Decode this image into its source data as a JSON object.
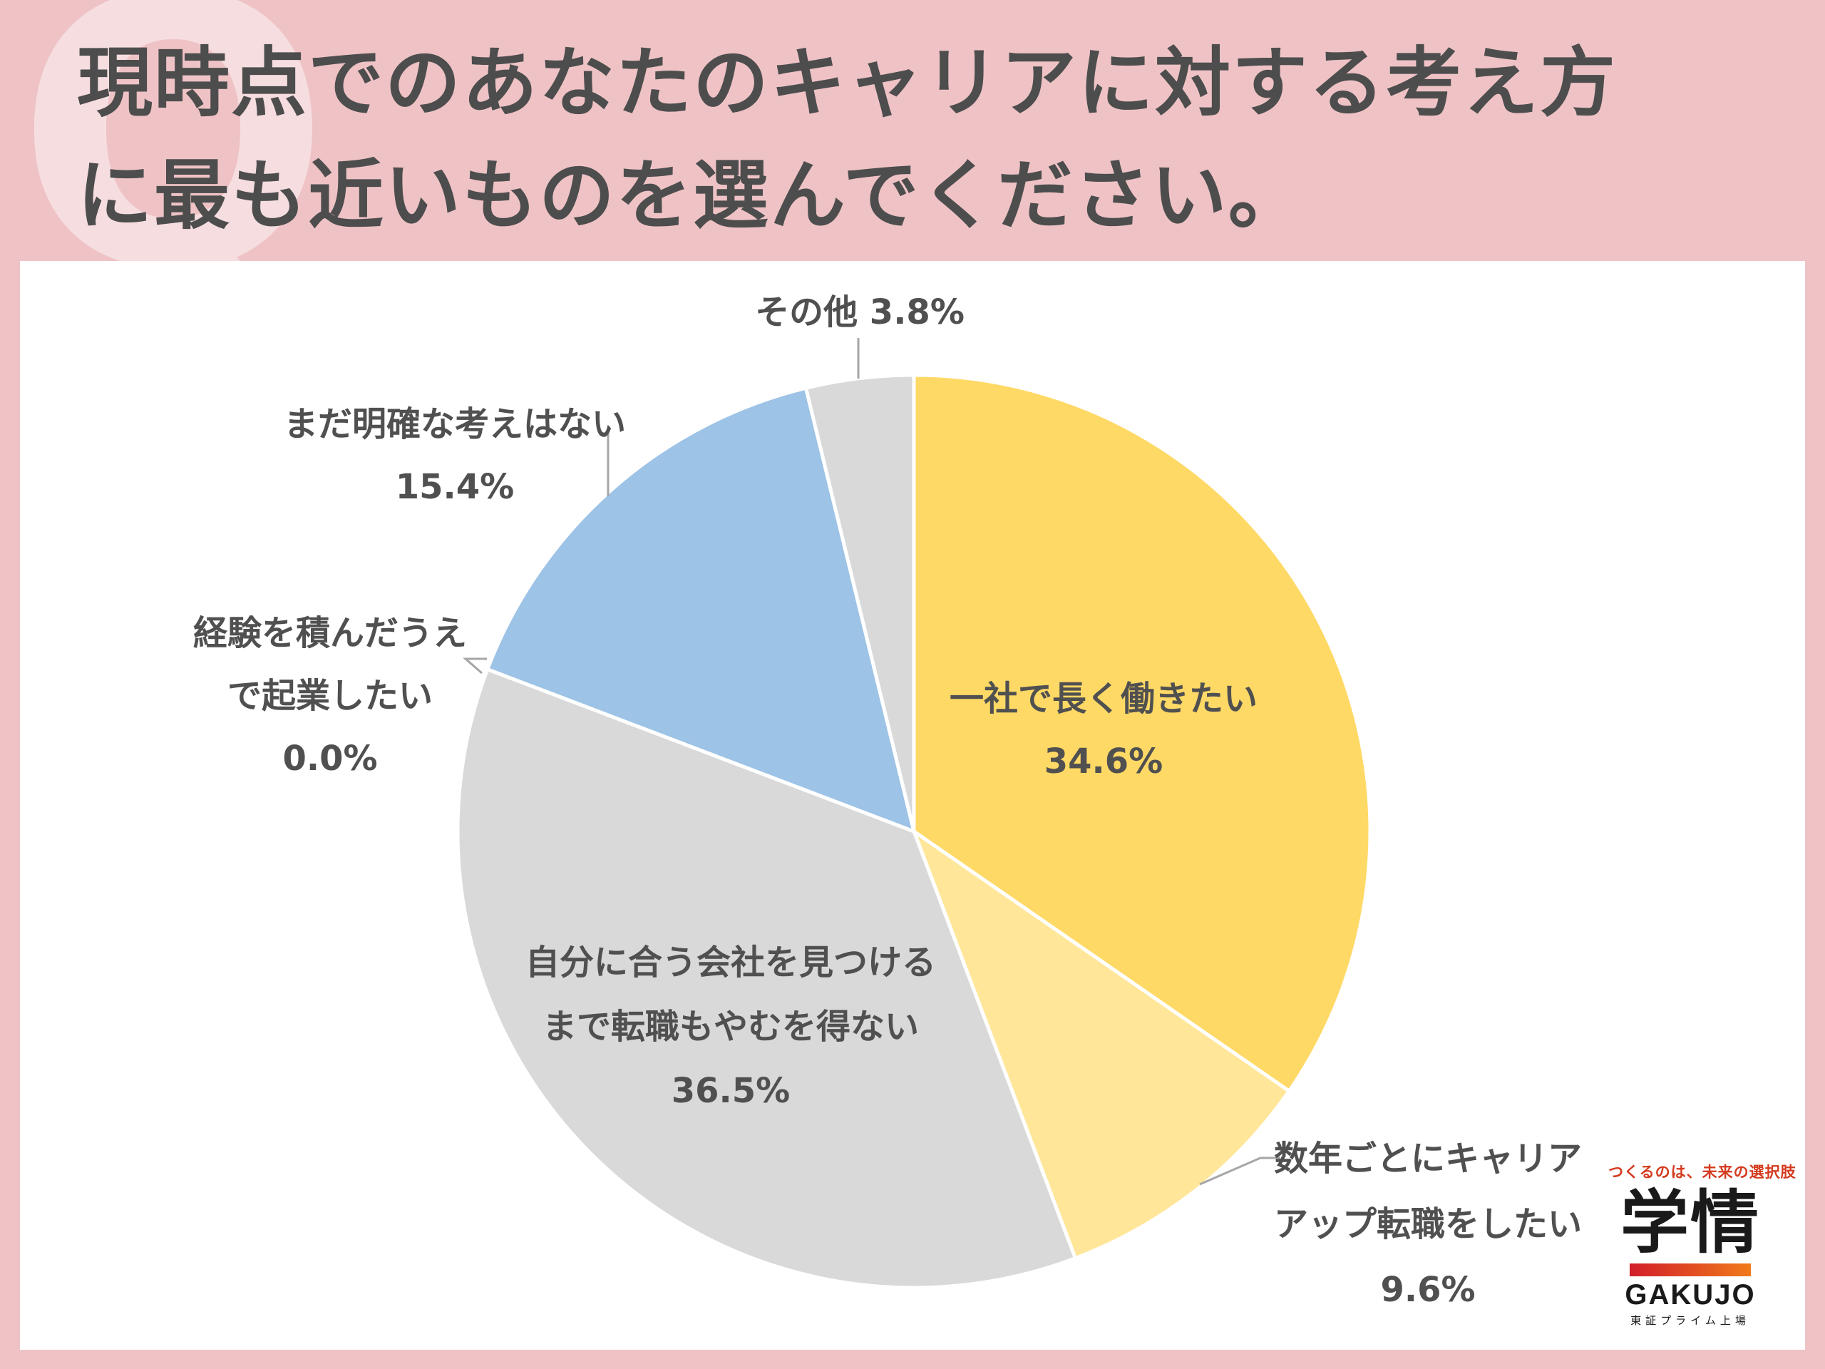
{
  "header": {
    "q_mark": "Q",
    "title_line1": "現時点でのあなたのキャリアに対する考え方",
    "title_line2": "に最も近いものを選んでください。"
  },
  "logo": {
    "tagline": "つくるのは、未来の選択肢",
    "kanji": "学情",
    "brand": "GAKUJO",
    "sub": "東証プライム上場"
  },
  "chart_data": {
    "type": "pie",
    "title": "現時点でのあなたのキャリアに対する考え方に最も近いものを選んでください。",
    "unit": "%",
    "start_angle_deg": 0,
    "direction": "clockwise",
    "slices": [
      {
        "label_lines": [
          "一社で長く働きたい"
        ],
        "value": 34.6,
        "value_label": "34.6%",
        "color": "#ffd966"
      },
      {
        "label_lines": [
          "数年ごとにキャリア",
          "アップ転職をしたい"
        ],
        "value": 9.6,
        "value_label": "9.6%",
        "color": "#ffe699"
      },
      {
        "label_lines": [
          "自分に合う会社を見つける",
          "まで転職もやむを得ない"
        ],
        "value": 36.5,
        "value_label": "36.5%",
        "color": "#d9d9d9"
      },
      {
        "label_lines": [
          "経験を積んだうえ",
          "で起業したい"
        ],
        "value": 0.0,
        "value_label": "0.0%",
        "color": "#f4b183"
      },
      {
        "label_lines": [
          "まだ明確な考えはない"
        ],
        "value": 15.4,
        "value_label": "15.4%",
        "color": "#9dc3e6"
      },
      {
        "label_lines": [
          "その他"
        ],
        "value": 3.8,
        "value_label": "3.8%",
        "color": "#d9d9d9"
      }
    ]
  }
}
